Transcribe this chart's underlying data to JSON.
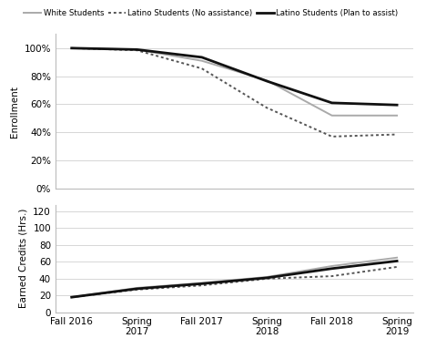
{
  "x_labels": [
    "Fall 2016",
    "Spring\n2017",
    "Fall 2017",
    "Spring\n2018",
    "Fall 2018",
    "Spring\n2019"
  ],
  "enrollment": {
    "white": [
      1.0,
      0.99,
      0.91,
      0.77,
      0.52,
      0.52
    ],
    "latino_no_assist": [
      1.0,
      0.985,
      0.855,
      0.575,
      0.37,
      0.385
    ],
    "latino_plan": [
      1.0,
      0.99,
      0.935,
      0.765,
      0.61,
      0.595
    ]
  },
  "credits": {
    "white": [
      18,
      29,
      35,
      42,
      55,
      65
    ],
    "latino_no_assist": [
      18,
      27,
      32,
      40,
      43,
      54
    ],
    "latino_plan": [
      18,
      28,
      34,
      41,
      52,
      61
    ]
  },
  "colors": {
    "white": "#aaaaaa",
    "latino_no_assist": "#555555",
    "latino_plan": "#111111"
  },
  "legend": {
    "white": "White Students",
    "latino_no_assist": "Latino Students (No assistance)",
    "latino_plan": "Latino Students (Plan to assist)"
  },
  "enrollment_yticks": [
    0.0,
    0.2,
    0.4,
    0.6,
    0.8,
    1.0
  ],
  "credits_yticks": [
    0,
    20,
    40,
    60,
    80,
    100,
    120
  ],
  "ylabel_top": "Enrollment",
  "ylabel_bottom": "Earned Credits (Hrs.)"
}
